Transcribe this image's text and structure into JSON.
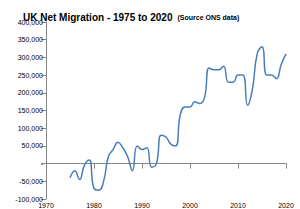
{
  "chart_data": {
    "type": "line",
    "title": "UK Net Migration - 1975 to 2020",
    "subtitle": "(Source ONS data)",
    "x": [
      1975,
      1976,
      1977,
      1978,
      1979,
      1980,
      1981,
      1982,
      1983,
      1984,
      1985,
      1986,
      1987,
      1988,
      1989,
      1990,
      1991,
      1992,
      1993,
      1994,
      1995,
      1996,
      1997,
      1998,
      1999,
      2000,
      2001,
      2002,
      2003,
      2004,
      2005,
      2006,
      2007,
      2008,
      2009,
      2010,
      2011,
      2012,
      2013,
      2014,
      2015,
      2016,
      2017,
      2018,
      2019,
      2020
    ],
    "values": [
      -40000,
      -20000,
      -45000,
      -5000,
      10000,
      -70000,
      -75000,
      -50000,
      20000,
      40000,
      60000,
      45000,
      20000,
      -20000,
      50000,
      40000,
      45000,
      -10000,
      0,
      80000,
      75000,
      55000,
      50000,
      140000,
      160000,
      160000,
      175000,
      170000,
      185000,
      270000,
      265000,
      265000,
      275000,
      230000,
      230000,
      250000,
      250000,
      165000,
      210000,
      310000,
      330000,
      250000,
      250000,
      240000,
      280000,
      310000
    ],
    "color": "#4a7ebb",
    "line_style": "solid",
    "xlim": [
      1970,
      2020
    ],
    "xticks": [
      1970,
      1980,
      1990,
      2000,
      2010,
      2020
    ],
    "ylim": [
      -100000,
      400000
    ],
    "yticks": [
      {
        "value": -100000,
        "label": "-100,000"
      },
      {
        "value": -50000,
        "label": "-50,000"
      },
      {
        "value": 0,
        "label": "-"
      },
      {
        "value": 50000,
        "label": "50,000"
      },
      {
        "value": 100000,
        "label": "100,000"
      },
      {
        "value": 150000,
        "label": "150,000"
      },
      {
        "value": 200000,
        "label": "200,000"
      },
      {
        "value": 250000,
        "label": "250,000"
      },
      {
        "value": 300000,
        "label": "300,000"
      },
      {
        "value": 350000,
        "label": "350,000"
      },
      {
        "value": 400000,
        "label": "400,000"
      }
    ],
    "grid": false
  }
}
